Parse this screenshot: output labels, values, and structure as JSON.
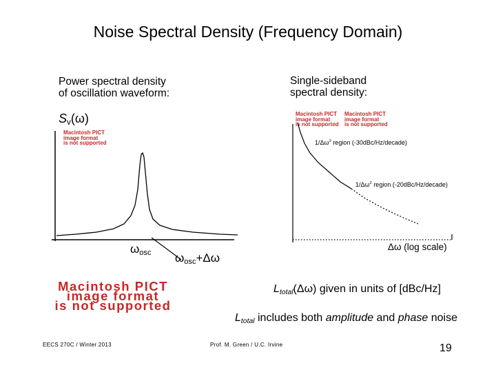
{
  "slide": {
    "title": "Noise Spectral Density (Frequency Domain)",
    "page_number": "19"
  },
  "left_panel": {
    "heading_line1": "Power spectral density",
    "heading_line2": "of oscillation waveform:",
    "y_label_main": "S",
    "y_label_sub": "v",
    "y_label_arg": "(ω)",
    "x_label_omega": "ω",
    "x_label_sub": "osc",
    "offset_omega": "ω",
    "offset_sub": "osc",
    "offset_rest": "+Δω"
  },
  "right_panel": {
    "heading_line1": "Single-sideband",
    "heading_line2": "spectral density:",
    "region1_prefix": "1/Δω",
    "region1_exp": "3",
    "region1_suffix": " region (-30dBc/Hz/decade)",
    "region2_prefix": "1/Δω",
    "region2_exp": "2",
    "region2_suffix": " region (-20dBc/Hz/decade)",
    "x_axis_label": "Δω (log scale)",
    "ltotal_L": "L",
    "ltotal_sub": "total",
    "ltotal_rest": "(Δω) given in units of [dBc/Hz]",
    "includes_L": "L",
    "includes_sub": "total",
    "includes_mid": " includes both ",
    "includes_amp": "amplitude",
    "includes_and": " and ",
    "includes_phase": "phase",
    "includes_end": " noise"
  },
  "pict_placeholders": {
    "line1": "Macintosh PICT",
    "line2": "image format",
    "line3": "is not supported"
  },
  "footer": {
    "left": "EECS 270C / Winter 2013",
    "center": "Prof. M. Green / U.C. Irvine"
  },
  "colors": {
    "pict_red": "#c62828",
    "curve": "#000000"
  }
}
